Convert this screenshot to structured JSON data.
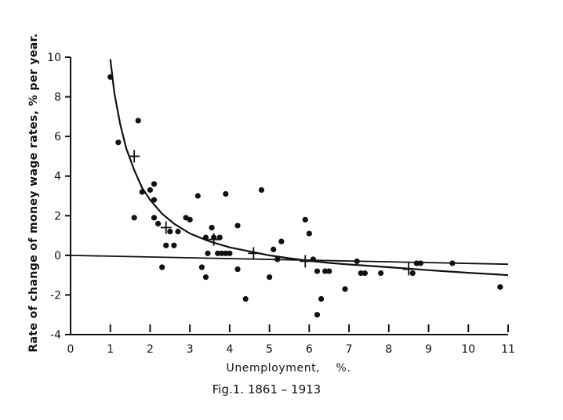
{
  "chart_data": {
    "type": "scatter",
    "title": "",
    "caption": "Fig.1. 1861 – 1913",
    "xlabel": "Unemployment,    %.",
    "ylabel": "Rate of change of money wage rates, % per year.",
    "xlim": [
      0,
      11
    ],
    "ylim": [
      -4,
      10
    ],
    "x_ticks": [
      0,
      1,
      2,
      3,
      4,
      5,
      6,
      7,
      8,
      9,
      10,
      11
    ],
    "y_ticks": [
      -4,
      -2,
      0,
      2,
      4,
      6,
      8,
      10
    ],
    "grid": false,
    "legend": "none",
    "series": [
      {
        "kind": "points",
        "x": [
          1.0,
          1.2,
          1.6,
          1.7,
          1.8,
          2.0,
          2.1,
          2.1,
          2.1,
          2.2,
          2.3,
          2.4,
          2.5,
          2.6,
          2.7,
          2.9,
          3.0,
          3.2,
          3.3,
          3.4,
          3.4,
          3.45,
          3.55,
          3.6,
          3.7,
          3.75,
          3.8,
          3.9,
          3.9,
          4.0,
          4.2,
          4.2,
          4.4,
          4.8,
          5.0,
          5.1,
          5.2,
          5.3,
          5.9,
          6.0,
          6.1,
          6.2,
          6.2,
          6.3,
          6.4,
          6.5,
          6.9,
          7.2,
          7.3,
          7.4,
          7.8,
          8.6,
          8.7,
          8.8,
          9.6,
          10.8
        ],
        "y": [
          9.0,
          5.7,
          1.9,
          6.8,
          3.2,
          3.3,
          3.6,
          2.8,
          1.9,
          1.6,
          -0.6,
          0.5,
          1.2,
          0.5,
          1.2,
          1.9,
          1.8,
          3.0,
          -0.6,
          0.9,
          -1.1,
          0.1,
          1.4,
          0.9,
          0.1,
          0.9,
          0.1,
          3.1,
          0.1,
          0.1,
          1.5,
          -0.7,
          -2.2,
          3.3,
          -1.1,
          0.3,
          -0.2,
          0.7,
          1.8,
          1.1,
          -0.2,
          -0.8,
          -3.0,
          -2.2,
          -0.8,
          -0.8,
          -1.7,
          -0.3,
          -0.9,
          -0.9,
          -0.9,
          -0.9,
          -0.4,
          -0.4,
          -0.4,
          -1.6
        ]
      },
      {
        "kind": "averages",
        "x": [
          1.6,
          2.4,
          3.6,
          4.6,
          5.9,
          8.5
        ],
        "y": [
          5.0,
          1.4,
          0.8,
          0.1,
          -0.3,
          -0.7
        ]
      },
      {
        "kind": "fitted_curve",
        "x": [
          1.0,
          1.1,
          1.25,
          1.4,
          1.6,
          1.8,
          2.0,
          2.3,
          2.6,
          3.0,
          3.5,
          4.0,
          4.5,
          5.0,
          5.5,
          6.0,
          6.5,
          7.0,
          8.0,
          9.0,
          10.0,
          11.0
        ],
        "y": [
          9.9,
          8.2,
          6.6,
          5.4,
          4.3,
          3.4,
          2.8,
          2.1,
          1.6,
          1.1,
          0.7,
          0.4,
          0.2,
          0.0,
          -0.15,
          -0.28,
          -0.38,
          -0.46,
          -0.6,
          -0.75,
          -0.88,
          -1.0
        ]
      },
      {
        "kind": "zero_line",
        "x": [
          0.0,
          11.0
        ],
        "y": [
          0.0,
          -0.45
        ]
      }
    ]
  }
}
